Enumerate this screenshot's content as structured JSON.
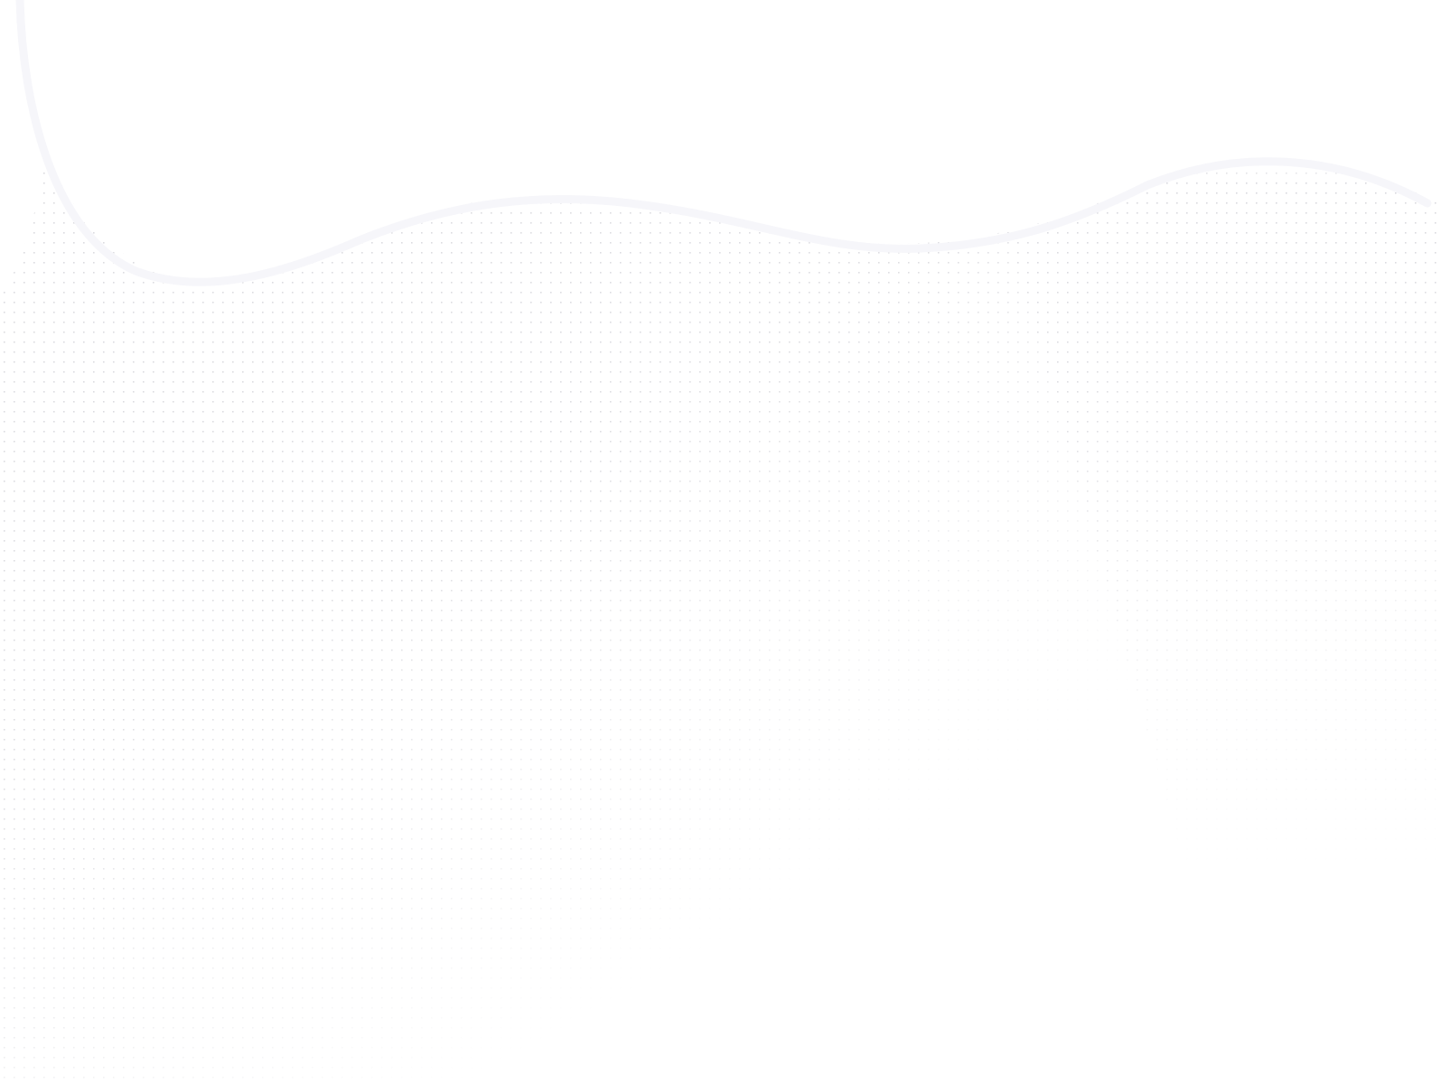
{
  "colors": {
    "background": "#ffffff",
    "dot": "#d9d9de",
    "wave_stroke": "#f6f6fa"
  },
  "decoration": {
    "pattern": "dot-grid",
    "fade": "bottom-right"
  }
}
